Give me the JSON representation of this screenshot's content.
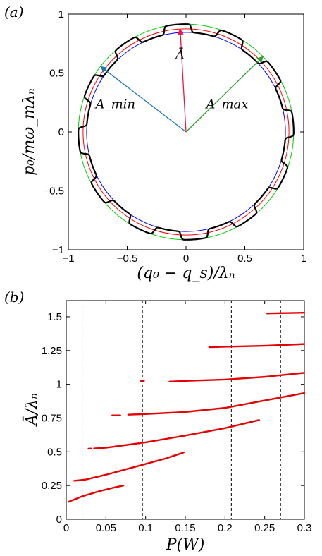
{
  "chart_data": [
    {
      "panel": "(a)",
      "type": "line",
      "xlabel": "(q₀ − q_s)/λₙ",
      "ylabel": "p₀/mω_mλₙ",
      "xlim": [
        -1,
        1
      ],
      "ylim": [
        -1,
        1
      ],
      "xticks": [
        "−1",
        "−0.5",
        "0",
        "0.5",
        "1"
      ],
      "yticks": [
        "−1",
        "−0.5",
        "0",
        "0.5",
        "1"
      ],
      "grid": false,
      "circles": [
        {
          "color": "#00cc00",
          "radius": 0.915
        },
        {
          "color": "#ff0000",
          "radius": 0.875
        },
        {
          "color": "#0000ff",
          "radius": 0.845
        }
      ],
      "orbit": {
        "color": "#000000",
        "r_min": 0.845,
        "r_max": 0.915,
        "steps": 12
      },
      "arrows": [
        {
          "label": "A_min",
          "color": "#1f77b4",
          "to": [
            -0.725,
            0.555
          ]
        },
        {
          "label": "Ā",
          "color": "#e6194b",
          "to": [
            -0.05,
            0.875
          ]
        },
        {
          "label": "A_max",
          "color": "#2ca02c",
          "to": [
            0.655,
            0.64
          ]
        }
      ],
      "annotations": [
        {
          "text": "Ā",
          "at": [
            -0.05,
            0.62
          ]
        },
        {
          "text": "A_max",
          "at": [
            0.35,
            0.2
          ]
        },
        {
          "text": "A_min",
          "at": [
            -0.6,
            0.2
          ]
        }
      ]
    },
    {
      "panel": "(b)",
      "type": "line",
      "xlabel": "P(W)",
      "ylabel": "Ā/λₙ",
      "xlim": [
        0,
        0.3
      ],
      "ylim": [
        0,
        1.62
      ],
      "xticks": [
        "0",
        "0.05",
        "0.1",
        "0.15",
        "0.2",
        "0.25",
        "0.3"
      ],
      "yticks": [
        "0",
        "0.25",
        "0.5",
        "0.75",
        "1",
        "1.25",
        "1.5"
      ],
      "grid": false,
      "vlines": [
        0.02,
        0.096,
        0.208,
        0.27
      ],
      "series_color": "#e60000",
      "series": [
        {
          "x": [
            0.003,
            0.02,
            0.04,
            0.06,
            0.072
          ],
          "y": [
            0.13,
            0.17,
            0.205,
            0.235,
            0.25
          ]
        },
        {
          "x": [
            0.01,
            0.025,
            0.05,
            0.075,
            0.1,
            0.125,
            0.148
          ],
          "y": [
            0.285,
            0.295,
            0.33,
            0.37,
            0.41,
            0.45,
            0.495
          ]
        },
        {
          "x": [
            0.028,
            0.031
          ],
          "y": [
            0.523,
            0.524
          ]
        },
        {
          "x": [
            0.035,
            0.05,
            0.075,
            0.1,
            0.15,
            0.2,
            0.243
          ],
          "y": [
            0.525,
            0.53,
            0.55,
            0.57,
            0.62,
            0.675,
            0.735
          ]
        },
        {
          "x": [
            0.058,
            0.068
          ],
          "y": [
            0.77,
            0.77
          ]
        },
        {
          "x": [
            0.078,
            0.1,
            0.15,
            0.2,
            0.25,
            0.3
          ],
          "y": [
            0.775,
            0.78,
            0.795,
            0.825,
            0.88,
            0.935
          ]
        },
        {
          "x": [
            0.094,
            0.098
          ],
          "y": [
            1.025,
            1.025
          ]
        },
        {
          "x": [
            0.13,
            0.15,
            0.2,
            0.25,
            0.3
          ],
          "y": [
            1.02,
            1.025,
            1.035,
            1.055,
            1.085
          ]
        },
        {
          "x": [
            0.18,
            0.2,
            0.25,
            0.3
          ],
          "y": [
            1.275,
            1.278,
            1.285,
            1.298
          ]
        },
        {
          "x": [
            0.253,
            0.27,
            0.3
          ],
          "y": [
            1.525,
            1.527,
            1.53
          ]
        }
      ]
    }
  ]
}
